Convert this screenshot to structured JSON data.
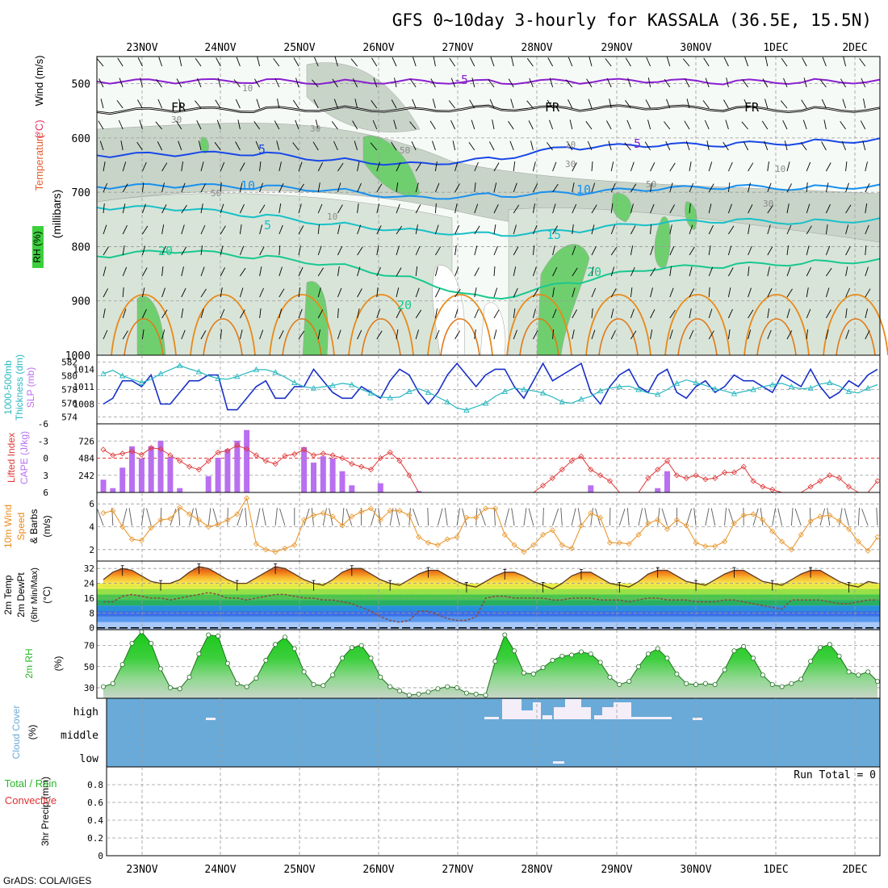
{
  "title": "GFS 0~10day 3-hourly for KASSALA (36.5E, 15.5N)",
  "credit": "GrADS: COLA/IGES",
  "dates": [
    "23NOV",
    "24NOV",
    "25NOV",
    "26NOV",
    "27NOV",
    "28NOV",
    "29NOV",
    "30NOV",
    "1DEC",
    "2DEC"
  ],
  "colors": {
    "rh_fill": "#6fcf6f",
    "rh_pale": "#e6f2e6",
    "rh_mid": "#c8d4c8",
    "temp_purple": "#8a1fd0",
    "temp_blue": "#1848e8",
    "temp_sky": "#1890f0",
    "temp_teal": "#18c0c8",
    "temp_green": "#18c890",
    "temp_orange": "#e88a18",
    "slp_line": "#1830c8",
    "thick_line": "#28b8c0",
    "cape_bar": "#b870f0",
    "li_line": "#e03838",
    "wind_line": "#e89830",
    "cloud_bg": "#6aaad8",
    "rh2m_fill": "#22c822",
    "precip_label": "#e03030"
  },
  "chart_data": [
    {
      "type": "contour",
      "name": "upper_air",
      "y_label_parts": [
        "Wind",
        "(m/s)",
        "Temperature",
        "(°C)",
        "RH (%)",
        "(millibars)"
      ],
      "yticks": [
        500,
        600,
        700,
        800,
        900,
        1000
      ],
      "ylim": [
        450,
        1000
      ],
      "contour_labels": [
        "5",
        "FR",
        "FR",
        "FR",
        "-5",
        "-5",
        "10",
        "10",
        "5",
        "15",
        "20",
        "20",
        "20",
        "30",
        "30",
        "30",
        "50",
        "50",
        "50",
        "10",
        "10",
        "10",
        "30",
        "10"
      ],
      "isotherms": [
        {
          "level": "-5",
          "p": [
            496,
            496,
            495,
            497,
            495,
            497,
            496,
            495,
            497,
            496,
            495
          ]
        },
        {
          "level": "FR",
          "p": [
            552,
            548,
            548,
            546,
            548,
            545,
            546,
            544,
            546,
            548,
            547
          ]
        },
        {
          "level": "-5",
          "p": [
            632,
            630,
            628,
            640,
            648,
            640,
            618,
            614,
            612,
            608,
            603
          ]
        },
        {
          "level": "10",
          "p": [
            690,
            688,
            690,
            695,
            710,
            706,
            702,
            695,
            690,
            692,
            688
          ]
        },
        {
          "level": "5",
          "p": [
            728,
            730,
            742,
            758,
            770,
            778,
            772,
            758,
            752,
            755,
            750
          ]
        },
        {
          "level": "20",
          "p": [
            818,
            808,
            818,
            832,
            858,
            898,
            868,
            842,
            835,
            830,
            825
          ]
        }
      ],
      "grid": true
    },
    {
      "type": "line",
      "name": "slp_thickness",
      "y_label_parts": [
        "1000-500mb",
        "Thickness",
        "(dm)",
        "SLP",
        "(mb)"
      ],
      "left_ticks": [
        582,
        580,
        578,
        576,
        574
      ],
      "right_ticks": [
        1014,
        1011,
        1008
      ],
      "slp_lim": [
        1005,
        1016
      ],
      "thick_lim": [
        573,
        583
      ],
      "series": [
        {
          "name": "SLP (mb)",
          "values": [
            1008,
            1009,
            1012,
            1012,
            1011,
            1013,
            1008,
            1008,
            1010,
            1012,
            1012,
            1013,
            1013,
            1007,
            1007,
            1009,
            1011,
            1012,
            1009,
            1009,
            1011,
            1011,
            1014,
            1012,
            1010,
            1009,
            1009,
            1011,
            1010,
            1009,
            1012,
            1014,
            1013,
            1010,
            1008,
            1010,
            1013,
            1015,
            1013,
            1011,
            1013,
            1014,
            1014,
            1011,
            1009,
            1012,
            1015,
            1012,
            1013,
            1014,
            1015,
            1010,
            1008,
            1011,
            1013,
            1014,
            1011,
            1010,
            1013,
            1014,
            1010,
            1009,
            1011,
            1012,
            1010,
            1011,
            1013,
            1012,
            1012,
            1011,
            1010,
            1013,
            1012,
            1011,
            1014,
            1011,
            1009,
            1010,
            1012,
            1011,
            1013,
            1014
          ]
        },
        {
          "name": "1000-500mb Thickness (dm)",
          "values": [
            580.3,
            580.8,
            580.0,
            579.5,
            579.0,
            579.5,
            580.3,
            580.9,
            581.5,
            581.0,
            580.6,
            580.0,
            579.6,
            579.5,
            579.9,
            580.4,
            580.9,
            580.9,
            580.5,
            579.8,
            579.0,
            578.4,
            578.2,
            578.4,
            578.6,
            578.9,
            578.7,
            578.0,
            577.5,
            576.9,
            576.8,
            576.9,
            577.7,
            578.1,
            577.6,
            576.9,
            576.2,
            575.3,
            575.0,
            575.5,
            576.0,
            577.0,
            577.7,
            578.2,
            578.0,
            577.8,
            577.5,
            576.9,
            576.2,
            576.0,
            576.6,
            577.0,
            577.8,
            578.2,
            578.4,
            578.5,
            578.0,
            577.5,
            577.3,
            578.0,
            578.9,
            579.4,
            579.0,
            578.6,
            578.1,
            577.8,
            577.4,
            577.7,
            578.0,
            578.4,
            578.7,
            578.9,
            578.4,
            578.1,
            578.2,
            578.8,
            579.0,
            578.5,
            577.7,
            577.5,
            578.2,
            578.7
          ]
        }
      ]
    },
    {
      "type": "bar",
      "name": "cape_li",
      "y_label_parts": [
        "Lifted Index",
        "CAPE (J/kg)"
      ],
      "li_ticks": [
        -6,
        -3,
        0,
        3,
        6
      ],
      "cape_ticks": [
        726,
        484,
        242
      ],
      "cape_lim": [
        0,
        968
      ],
      "series": [
        {
          "name": "CAPE (J/kg)",
          "values": [
            180,
            60,
            350,
            650,
            480,
            650,
            730,
            500,
            60,
            0,
            0,
            230,
            490,
            610,
            730,
            880,
            0,
            0,
            0,
            0,
            0,
            640,
            420,
            510,
            480,
            300,
            100,
            0,
            0,
            130,
            0,
            0,
            0,
            20,
            0,
            0,
            0,
            0,
            0,
            0,
            0,
            0,
            0,
            0,
            0,
            0,
            0,
            0,
            0,
            0,
            0,
            100,
            0,
            0,
            0,
            0,
            0,
            0,
            60,
            300,
            0,
            0,
            0,
            0,
            0,
            0,
            0,
            0,
            0,
            0,
            0,
            0,
            0,
            0,
            0,
            0,
            0,
            0,
            0,
            0,
            0,
            0
          ]
        },
        {
          "name": "Lifted Index",
          "values": [
            -1.5,
            -0.5,
            -0.8,
            -1.2,
            -0.6,
            -1.8,
            -1.6,
            -0.5,
            0.5,
            1.5,
            2.0,
            0.5,
            -1.0,
            -1.3,
            -2.2,
            -1.6,
            -0.5,
            0.5,
            1.0,
            -0.4,
            -0.7,
            -1.5,
            -0.5,
            -0.8,
            -0.5,
            0.0,
            1.0,
            1.5,
            2.0,
            0.0,
            -1.0,
            0.5,
            3.0,
            6.0,
            6.0,
            6.0,
            6.0,
            6.0,
            6.0,
            6.0,
            6.0,
            6.0,
            6.0,
            6.0,
            6.0,
            6.0,
            4.8,
            3.5,
            2.0,
            0.5,
            -0.3,
            2.0,
            3.0,
            4.0,
            6.0,
            6.0,
            6.0,
            3.5,
            2.0,
            0.5,
            3.0,
            3.5,
            3.0,
            3.7,
            3.5,
            2.5,
            2.5,
            1.5,
            4.0,
            5.0,
            5.5,
            6.0,
            6.0,
            6.0,
            5.0,
            4.0,
            3.0,
            3.5,
            5.0,
            6.0,
            6.0,
            4.0
          ]
        }
      ]
    },
    {
      "type": "line",
      "name": "wind10m",
      "y_label_parts": [
        "10m Wind",
        "Speed",
        "& Barbs",
        "(m/s)"
      ],
      "yticks": [
        6,
        4,
        2
      ],
      "ylim": [
        1,
        7
      ],
      "series": [
        {
          "name": "10m Wind Speed (m/s)",
          "values": [
            5.2,
            5.4,
            4.0,
            2.9,
            2.8,
            3.9,
            4.6,
            4.7,
            5.7,
            5.1,
            4.6,
            4.0,
            4.2,
            4.6,
            5.1,
            6.5,
            2.5,
            2.0,
            1.8,
            2.1,
            2.4,
            4.6,
            5.0,
            5.2,
            4.9,
            4.1,
            4.9,
            5.3,
            5.6,
            4.6,
            5.4,
            5.4,
            5.0,
            3.1,
            2.6,
            2.4,
            2.9,
            3.1,
            4.8,
            4.8,
            5.6,
            5.6,
            3.3,
            2.4,
            1.8,
            2.4,
            3.3,
            3.7,
            2.4,
            2.1,
            4.1,
            5.2,
            4.8,
            2.6,
            2.6,
            2.5,
            3.3,
            4.3,
            4.6,
            3.8,
            4.6,
            4.1,
            2.6,
            2.3,
            2.3,
            2.7,
            4.3,
            5.0,
            5.1,
            4.6,
            3.6,
            2.7,
            2.0,
            3.3,
            4.5,
            4.9,
            5.0,
            4.5,
            3.8,
            2.7,
            1.9,
            3.1
          ]
        }
      ]
    },
    {
      "type": "area",
      "name": "temp2m",
      "y_label_parts": [
        "2m Temp",
        "2m DewPt",
        "(6hr Min/Max)",
        "(°C)"
      ],
      "yticks": [
        32,
        24,
        16,
        8,
        0
      ],
      "ylim": [
        -1,
        36
      ],
      "series": [
        {
          "name": "2m Temp (°C)",
          "values": [
            26,
            30,
            32,
            31,
            28,
            25,
            24,
            24,
            26,
            30,
            33,
            32,
            29,
            26,
            24,
            24,
            27,
            30,
            33,
            32,
            29,
            26,
            24,
            23,
            26,
            30,
            32,
            32,
            29,
            26,
            24,
            23,
            26,
            29,
            31,
            31,
            28,
            25,
            23,
            22,
            25,
            28,
            30,
            30,
            28,
            25,
            23,
            21,
            24,
            28,
            30,
            30,
            27,
            24,
            23,
            22,
            25,
            29,
            31,
            31,
            28,
            25,
            24,
            23,
            26,
            29,
            31,
            31,
            28,
            25,
            24,
            23,
            26,
            29,
            31,
            31,
            28,
            25,
            23,
            22,
            25,
            24
          ]
        },
        {
          "name": "2m DewPt (°C)",
          "values": [
            14,
            14,
            17,
            18,
            17,
            16,
            16,
            15,
            16,
            17,
            18,
            19,
            18,
            16,
            16,
            15,
            16,
            17,
            18,
            18,
            17,
            16,
            16,
            15,
            15,
            14,
            13,
            11,
            9,
            6,
            4,
            3,
            4,
            9,
            9,
            7,
            5,
            4,
            4,
            6,
            16,
            17,
            17,
            16,
            16,
            16,
            16,
            15,
            15,
            16,
            16,
            16,
            15,
            15,
            15,
            14,
            15,
            16,
            16,
            15,
            15,
            15,
            14,
            14,
            14,
            15,
            15,
            14,
            13,
            12,
            11,
            10,
            15,
            15,
            15,
            15,
            14,
            13,
            13,
            14,
            15,
            15
          ]
        }
      ]
    },
    {
      "type": "area",
      "name": "rh2m",
      "y_label_parts": [
        "2m RH",
        "(%)"
      ],
      "yticks": [
        70,
        50,
        30
      ],
      "ylim": [
        20,
        85
      ],
      "series": [
        {
          "name": "2m RH (%)",
          "values": [
            31,
            34,
            52,
            72,
            83,
            72,
            48,
            30,
            29,
            40,
            62,
            80,
            79,
            53,
            34,
            31,
            39,
            56,
            71,
            78,
            67,
            45,
            33,
            32,
            42,
            58,
            68,
            70,
            58,
            40,
            31,
            27,
            23,
            24,
            26,
            29,
            31,
            30,
            25,
            24,
            23,
            55,
            80,
            65,
            44,
            43,
            49,
            56,
            60,
            61,
            64,
            62,
            54,
            40,
            33,
            36,
            50,
            62,
            67,
            58,
            43,
            34,
            33,
            34,
            33,
            47,
            65,
            69,
            58,
            42,
            33,
            31,
            34,
            38,
            55,
            68,
            71,
            60,
            45,
            42,
            45,
            36
          ]
        }
      ]
    },
    {
      "type": "heatmap",
      "name": "cloud_cover",
      "y_label_parts": [
        "Cloud",
        "Cover",
        "(%)"
      ],
      "levels": [
        "high",
        "middle",
        "low"
      ]
    },
    {
      "type": "bar",
      "name": "precip3h",
      "y_label_parts": [
        "3hr Precip",
        "(mm)",
        "Total / Rain",
        "Convective"
      ],
      "yticks": [
        0.8,
        0.6,
        0.4,
        0.2,
        0
      ],
      "ylim": [
        0,
        1
      ],
      "run_total": "Run Total = 0",
      "series": []
    }
  ]
}
